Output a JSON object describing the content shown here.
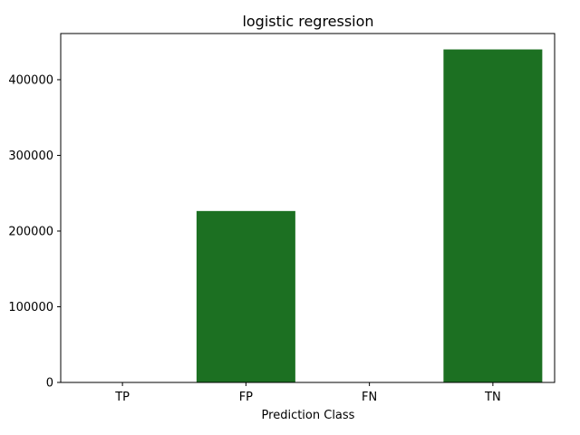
{
  "chart_data": {
    "type": "bar",
    "title": "logistic regression",
    "xlabel": "Prediction Class",
    "ylabel": "",
    "categories": [
      "TP",
      "FP",
      "FN",
      "TN"
    ],
    "values": [
      0,
      226500,
      0,
      440000
    ],
    "ylim": [
      0,
      461000
    ],
    "yticks": [
      0,
      100000,
      200000,
      300000,
      400000
    ],
    "ytick_labels": [
      "0",
      "100000",
      "200000",
      "300000",
      "400000"
    ],
    "bar_color": "#1c7022",
    "grid": false,
    "legend": "none"
  }
}
